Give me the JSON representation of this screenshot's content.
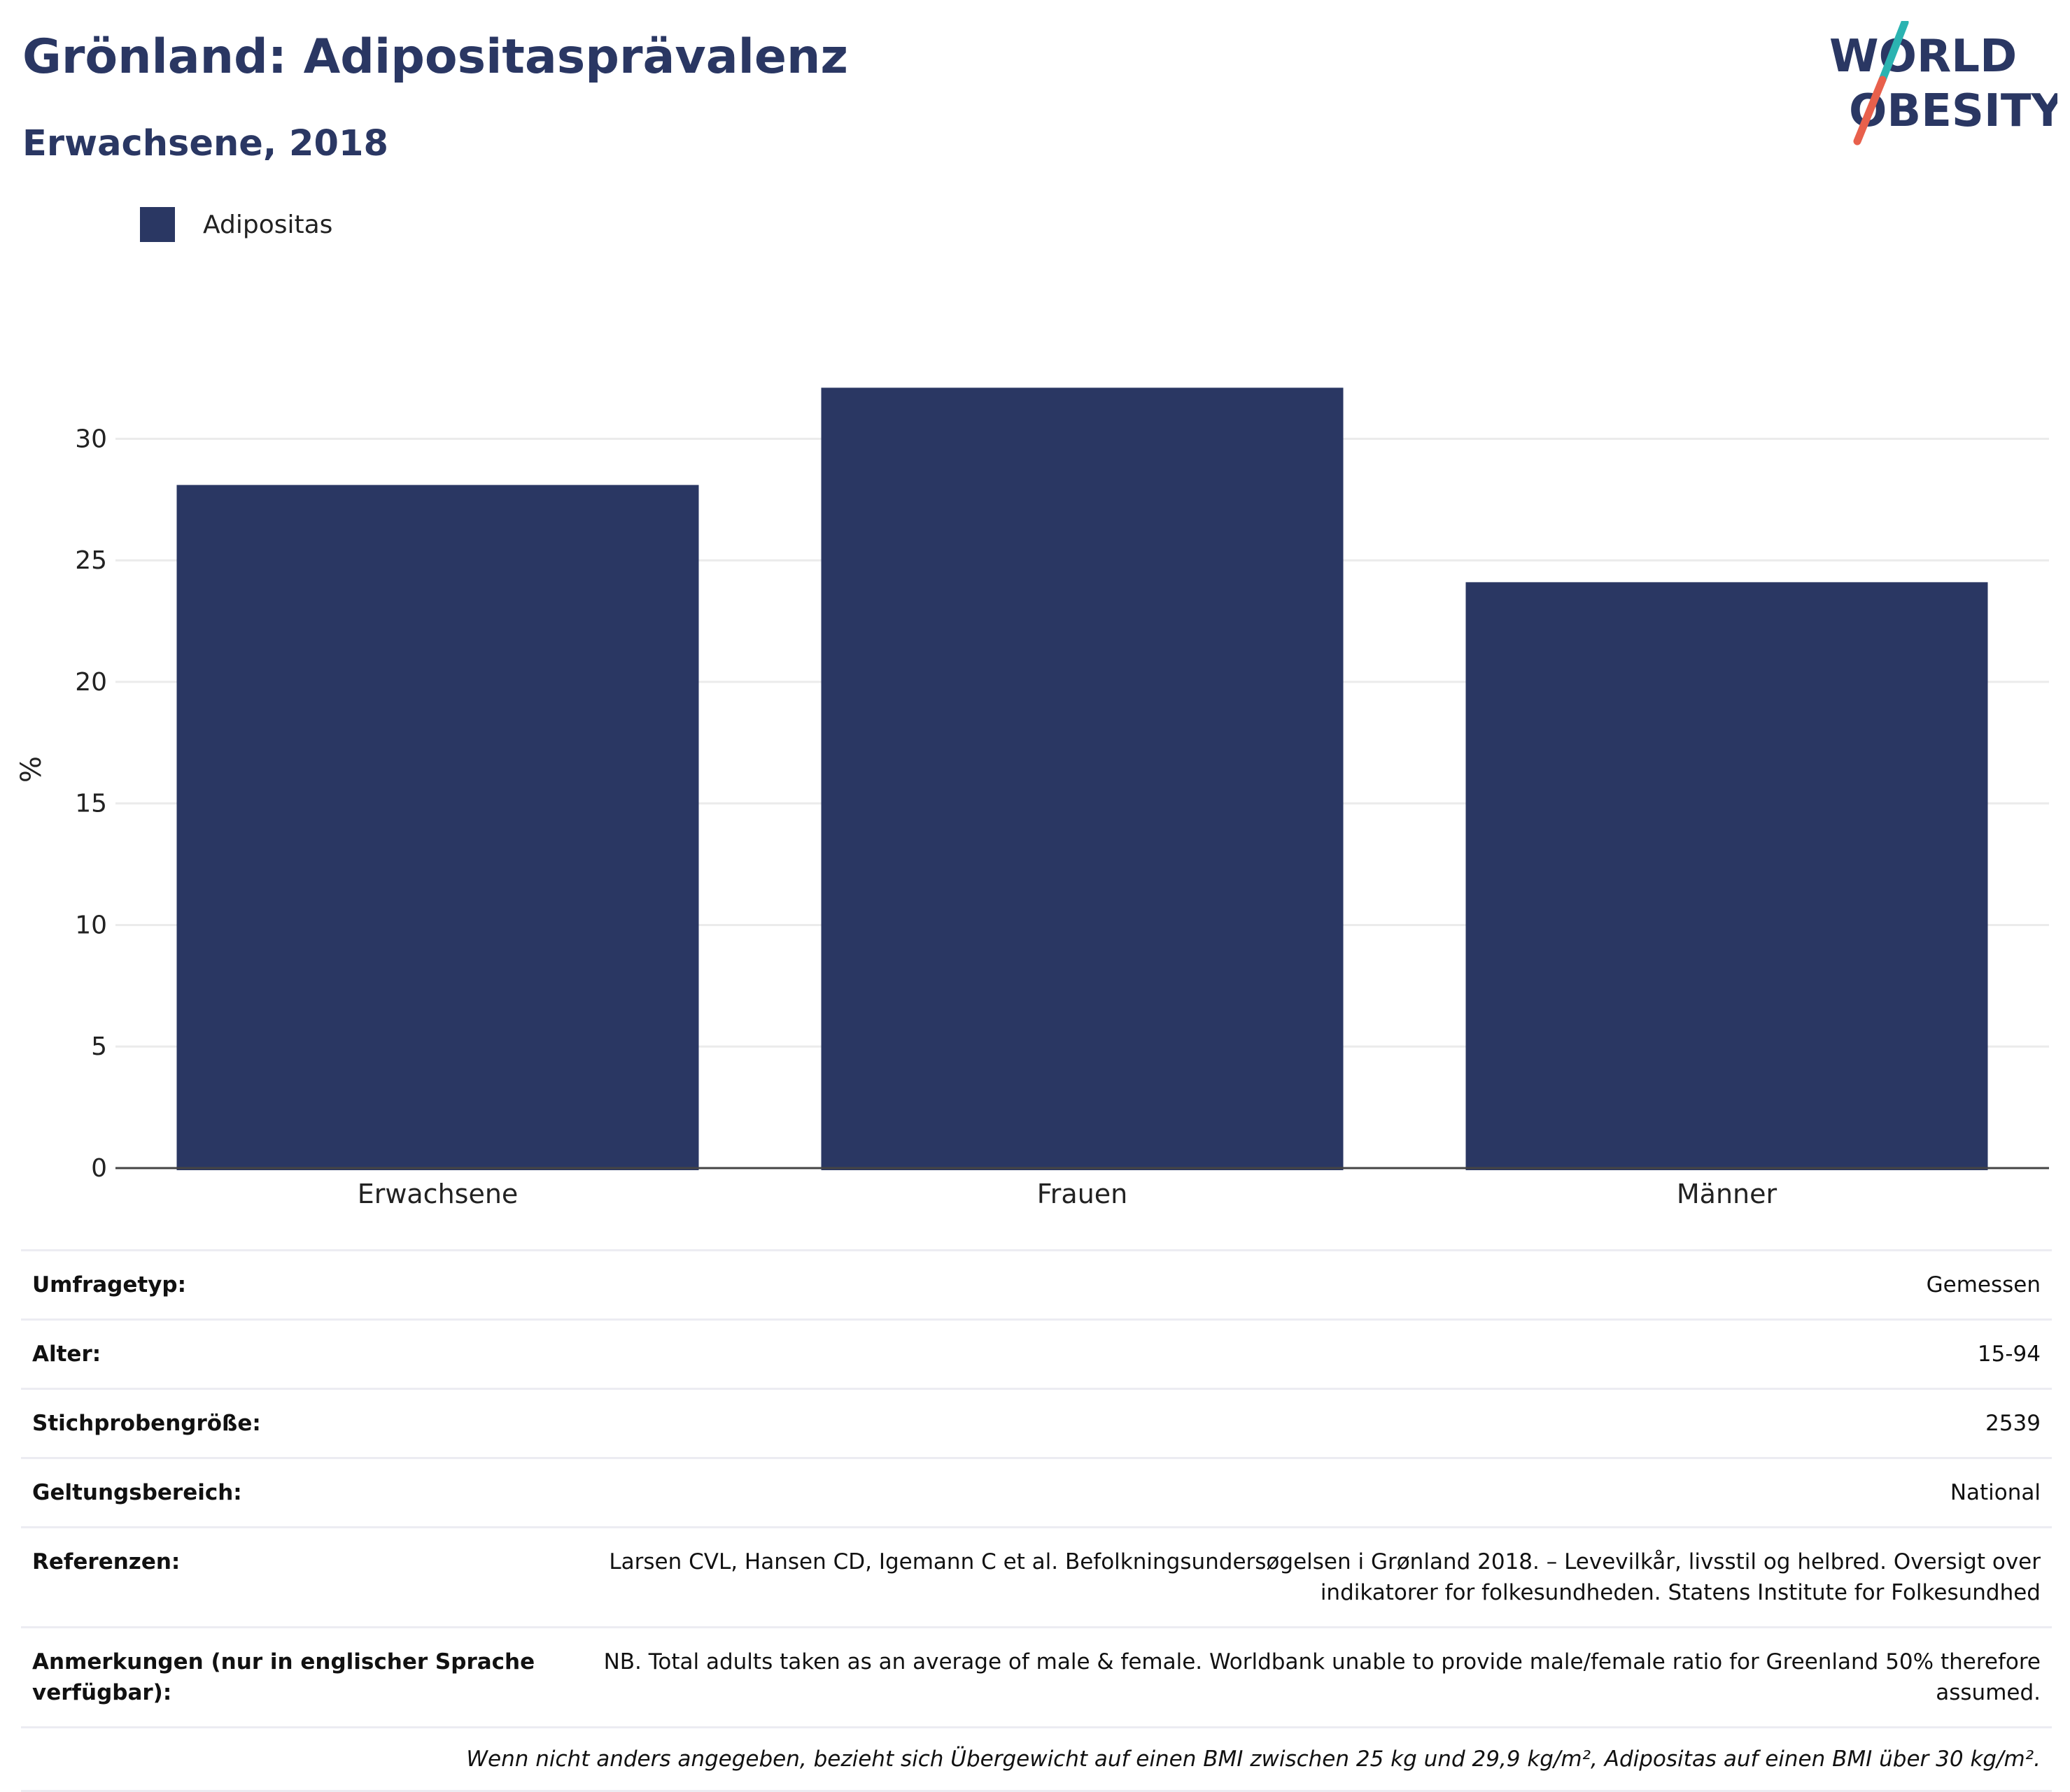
{
  "header": {
    "title": "Grönland: Adipositasprävalenz",
    "subtitle": "Erwachsene, 2018"
  },
  "logo": {
    "line1": "WORLD",
    "line2": "OBESITY",
    "colors": {
      "text": "#2a3763",
      "slash_top": "#2bb3b1",
      "slash_bottom": "#e8604c"
    }
  },
  "legend": {
    "label": "Adipositas",
    "color": "#2a3763"
  },
  "chart_data": {
    "type": "bar",
    "categories": [
      "Erwachsene",
      "Frauen",
      "Männer"
    ],
    "series": [
      {
        "name": "Adipositas",
        "values": [
          28.1,
          32.1,
          24.1
        ],
        "color": "#2a3763"
      }
    ],
    "ylabel": "%",
    "ylim": [
      0,
      32.8
    ],
    "yticks": [
      0,
      5,
      10,
      15,
      20,
      25,
      30
    ],
    "grid": true,
    "legend_position": "top-left"
  },
  "meta": {
    "rows": [
      {
        "key": "Umfragetyp:",
        "value": "Gemessen"
      },
      {
        "key": "Alter:",
        "value": "15-94"
      },
      {
        "key": "Stichprobengröße:",
        "value": "2539"
      },
      {
        "key": "Geltungsbereich:",
        "value": "National"
      },
      {
        "key": "Referenzen:",
        "value": "Larsen CVL, Hansen CD, Igemann C et al. Befolkningsundersøgelsen i Grønland 2018. – Levevilkår, livsstil og helbred. Oversigt over indikatorer for folkesundheden. Statens Institute for Folkesundhed"
      },
      {
        "key": "Anmerkungen (nur in englischer Sprache verfügbar):",
        "value": "NB. Total adults taken as an average of male & female. Worldbank unable to provide male/female ratio for Greenland 50% therefore assumed."
      }
    ],
    "footnote": "Wenn nicht anders angegeben, bezieht sich Übergewicht auf einen BMI zwischen 25 kg und 29,9 kg/m², Adipositas auf einen BMI über 30 kg/m²."
  }
}
